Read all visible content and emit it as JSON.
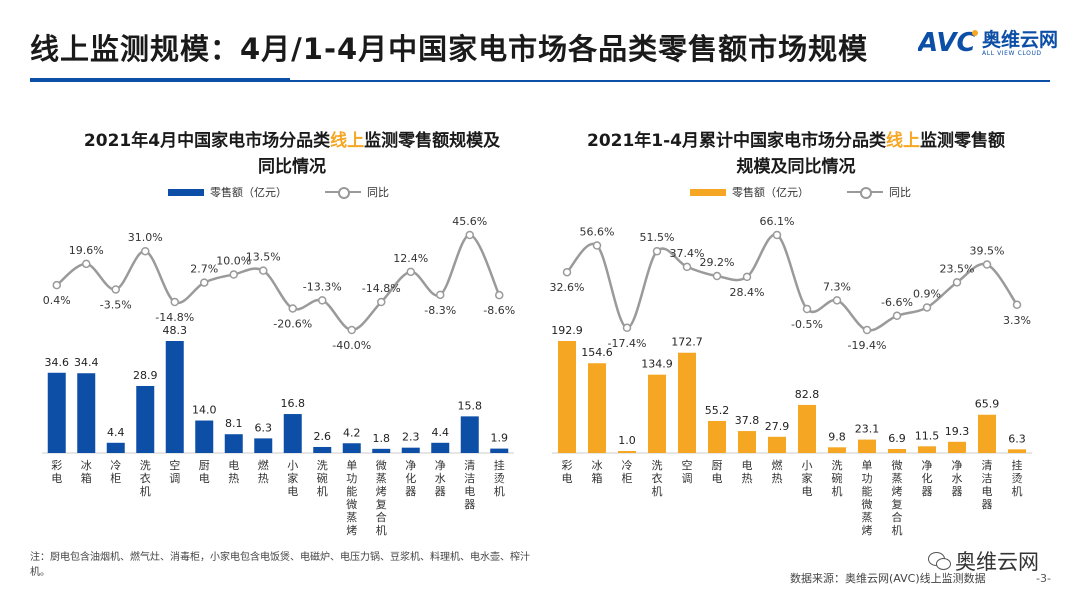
{
  "header": {
    "title": "线上监测规模：4月/1-4月中国家电市场各品类零售额市场规模",
    "logo_cn": "奥维云网",
    "logo_en": "ALL VIEW CLOUD"
  },
  "legend": {
    "bar_label": "零售额（亿元）",
    "line_label": "同比"
  },
  "colors": {
    "left_bar": "#0d4fa6",
    "right_bar": "#f5a623",
    "line": "#9a9a9a",
    "highlight": "#f5a623",
    "accent": "#0d4fa6"
  },
  "chart_data": [
    {
      "type": "bar",
      "title_part1": "2021年4月中国家电市场分品类",
      "title_highlight": "线上",
      "title_part2": "监测零售额规模及同比情况",
      "categories": [
        "彩电",
        "冰箱",
        "冷柜",
        "洗衣机",
        "空调",
        "厨电",
        "电热",
        "燃热",
        "小家电",
        "洗碗机",
        "单功能微蒸烤",
        "微蒸烤复合机",
        "净化器",
        "净水器",
        "清洁电器",
        "挂烫机"
      ],
      "series": [
        {
          "name": "零售额（亿元）",
          "type": "bar",
          "values": [
            34.6,
            34.4,
            4.4,
            28.9,
            48.3,
            14.0,
            8.1,
            6.3,
            16.8,
            2.6,
            4.2,
            1.8,
            2.3,
            4.4,
            15.8,
            1.9
          ]
        },
        {
          "name": "同比",
          "type": "line",
          "values": [
            0.4,
            19.6,
            -3.5,
            31.0,
            -14.8,
            2.7,
            10.0,
            13.5,
            -20.6,
            -13.3,
            -40.0,
            -14.8,
            12.4,
            -8.3,
            45.6,
            -8.6
          ]
        }
      ]
    },
    {
      "type": "bar",
      "title_part1": "2021年1-4月累计中国家电市场分品类",
      "title_highlight": "线上",
      "title_part2": "监测零售额规模及同比情况",
      "categories": [
        "彩电",
        "冰箱",
        "冷柜",
        "洗衣机",
        "空调",
        "厨电",
        "电热",
        "燃热",
        "小家电",
        "洗碗机",
        "单功能微蒸烤",
        "微蒸烤复合机",
        "净化器",
        "净水器",
        "清洁电器",
        "挂烫机"
      ],
      "series": [
        {
          "name": "零售额（亿元）",
          "type": "bar",
          "values": [
            192.9,
            154.6,
            1.0,
            134.9,
            172.7,
            55.2,
            37.8,
            27.9,
            82.8,
            9.8,
            23.1,
            6.9,
            11.5,
            19.3,
            65.9,
            6.3
          ]
        },
        {
          "name": "同比",
          "type": "line",
          "values": [
            32.6,
            56.6,
            -17.4,
            51.5,
            37.4,
            29.2,
            28.4,
            66.1,
            -0.5,
            7.3,
            -19.4,
            -6.6,
            0.9,
            23.5,
            39.5,
            3.3
          ]
        }
      ]
    }
  ],
  "footer": {
    "note": "注：厨电包含油烟机、燃气灶、消毒柜，小家电包含电饭煲、电磁炉、电压力锅、豆浆机、料理机、电水壶、榨汁机。",
    "source": "数据来源：奥维云网(AVC)线上监测数据",
    "wechat": "奥维云网",
    "page": "-3-"
  }
}
